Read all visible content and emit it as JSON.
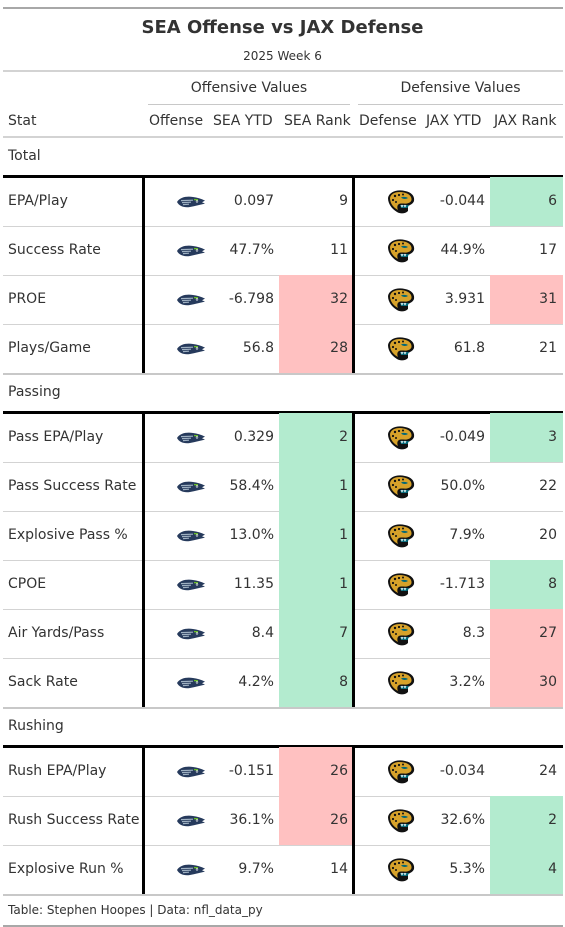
{
  "title": "SEA Offense vs JAX Defense",
  "subtitle": "2025 Week 6",
  "spanners": {
    "offense": "Offensive Values",
    "defense": "Defensive Values"
  },
  "columns": {
    "stat": "Stat",
    "offense": "Offense",
    "sea_ytd": "SEA YTD",
    "sea_rank": "SEA Rank",
    "defense": "Defense",
    "jax_ytd": "JAX YTD",
    "jax_rank": "JAX Rank"
  },
  "colors": {
    "good": "#b3ebcf",
    "bad": "#ffc1c1",
    "seahawks_navy": "#263a5c",
    "seahawks_green": "#69be28",
    "jaguars_teal": "#006778",
    "jaguars_gold": "#d7a22a"
  },
  "icons": {
    "offense": "seahawks-logo-icon",
    "defense": "jaguars-logo-icon"
  },
  "groups": [
    {
      "name": "Total",
      "rows": [
        {
          "stat": "EPA/Play",
          "sea_ytd": "0.097",
          "sea_rank": "9",
          "sea_rank_color": "",
          "jax_ytd": "-0.044",
          "jax_rank": "6",
          "jax_rank_color": "good"
        },
        {
          "stat": "Success Rate",
          "sea_ytd": "47.7%",
          "sea_rank": "11",
          "sea_rank_color": "",
          "jax_ytd": "44.9%",
          "jax_rank": "17",
          "jax_rank_color": ""
        },
        {
          "stat": "PROE",
          "sea_ytd": "-6.798",
          "sea_rank": "32",
          "sea_rank_color": "bad",
          "jax_ytd": "3.931",
          "jax_rank": "31",
          "jax_rank_color": "bad"
        },
        {
          "stat": "Plays/Game",
          "sea_ytd": "56.8",
          "sea_rank": "28",
          "sea_rank_color": "bad",
          "jax_ytd": "61.8",
          "jax_rank": "21",
          "jax_rank_color": ""
        }
      ]
    },
    {
      "name": "Passing",
      "rows": [
        {
          "stat": "Pass EPA/Play",
          "sea_ytd": "0.329",
          "sea_rank": "2",
          "sea_rank_color": "good",
          "jax_ytd": "-0.049",
          "jax_rank": "3",
          "jax_rank_color": "good"
        },
        {
          "stat": "Pass Success Rate",
          "sea_ytd": "58.4%",
          "sea_rank": "1",
          "sea_rank_color": "good",
          "jax_ytd": "50.0%",
          "jax_rank": "22",
          "jax_rank_color": ""
        },
        {
          "stat": "Explosive Pass %",
          "sea_ytd": "13.0%",
          "sea_rank": "1",
          "sea_rank_color": "good",
          "jax_ytd": "7.9%",
          "jax_rank": "20",
          "jax_rank_color": ""
        },
        {
          "stat": "CPOE",
          "sea_ytd": "11.35",
          "sea_rank": "1",
          "sea_rank_color": "good",
          "jax_ytd": "-1.713",
          "jax_rank": "8",
          "jax_rank_color": "good"
        },
        {
          "stat": "Air Yards/Pass",
          "sea_ytd": "8.4",
          "sea_rank": "7",
          "sea_rank_color": "good",
          "jax_ytd": "8.3",
          "jax_rank": "27",
          "jax_rank_color": "bad"
        },
        {
          "stat": "Sack Rate",
          "sea_ytd": "4.2%",
          "sea_rank": "8",
          "sea_rank_color": "good",
          "jax_ytd": "3.2%",
          "jax_rank": "30",
          "jax_rank_color": "bad"
        }
      ]
    },
    {
      "name": "Rushing",
      "rows": [
        {
          "stat": "Rush EPA/Play",
          "sea_ytd": "-0.151",
          "sea_rank": "26",
          "sea_rank_color": "bad",
          "jax_ytd": "-0.034",
          "jax_rank": "24",
          "jax_rank_color": ""
        },
        {
          "stat": "Rush Success Rate",
          "sea_ytd": "36.1%",
          "sea_rank": "26",
          "sea_rank_color": "bad",
          "jax_ytd": "32.6%",
          "jax_rank": "2",
          "jax_rank_color": "good"
        },
        {
          "stat": "Explosive Run %",
          "sea_ytd": "9.7%",
          "sea_rank": "14",
          "sea_rank_color": "",
          "jax_ytd": "5.3%",
          "jax_rank": "4",
          "jax_rank_color": "good"
        }
      ]
    }
  ],
  "footer": "Table: Stephen Hoopes | Data: nfl_data_py"
}
